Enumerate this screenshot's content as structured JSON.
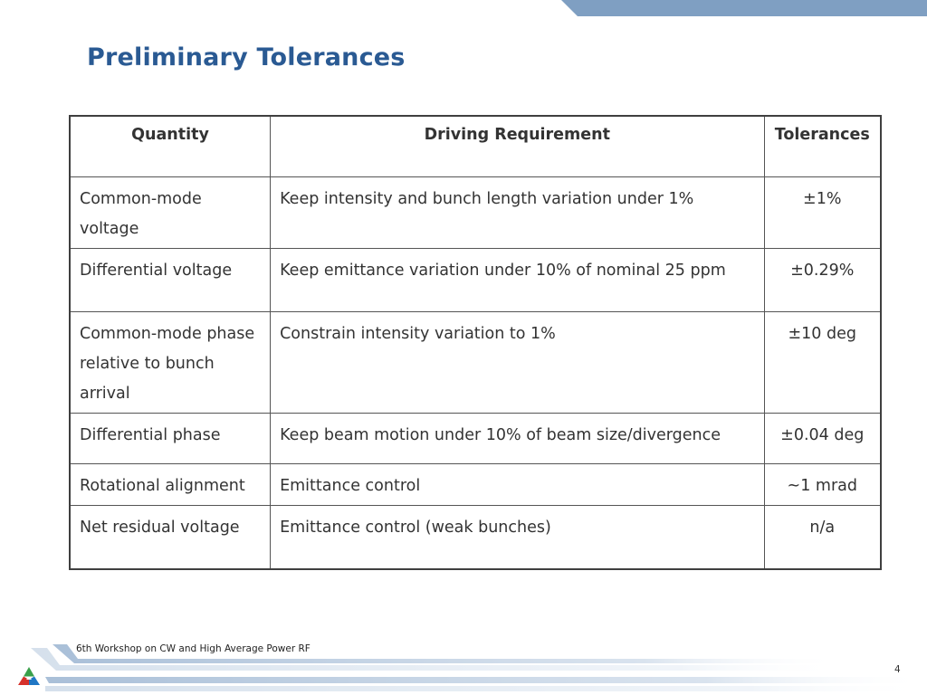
{
  "slide": {
    "title": "Preliminary Tolerances",
    "footer": "6th Workshop on CW and High Average Power RF",
    "page_number": "4"
  },
  "table": {
    "headers": [
      "Quantity",
      "Driving Requirement",
      "Tolerances"
    ],
    "rows": [
      {
        "quantity": "Common-mode voltage",
        "requirement": "Keep intensity and bunch length variation under 1%",
        "tolerance": "±1%"
      },
      {
        "quantity": "Differential voltage",
        "requirement": "Keep emittance variation under 10% of nominal 25 ppm",
        "tolerance": "±0.29%"
      },
      {
        "quantity": "Common-mode phase relative to bunch arrival",
        "requirement": "Constrain intensity variation to 1%",
        "tolerance": "±10 deg"
      },
      {
        "quantity": "Differential phase",
        "requirement": "Keep beam motion under 10% of beam size/divergence",
        "tolerance": "±0.04 deg"
      },
      {
        "quantity": "Rotational alignment",
        "requirement": "Emittance control",
        "tolerance": "~1 mrad"
      },
      {
        "quantity": "Net residual voltage",
        "requirement": "Emittance control (weak bunches)",
        "tolerance": "n/a"
      }
    ]
  },
  "colors": {
    "title": "#2a5a93",
    "top_band": "#7f9fc2",
    "footer_band": "#a9bfd8",
    "logo_green": "#3aa04a",
    "logo_red": "#d6312b",
    "logo_blue": "#1f76c4"
  }
}
